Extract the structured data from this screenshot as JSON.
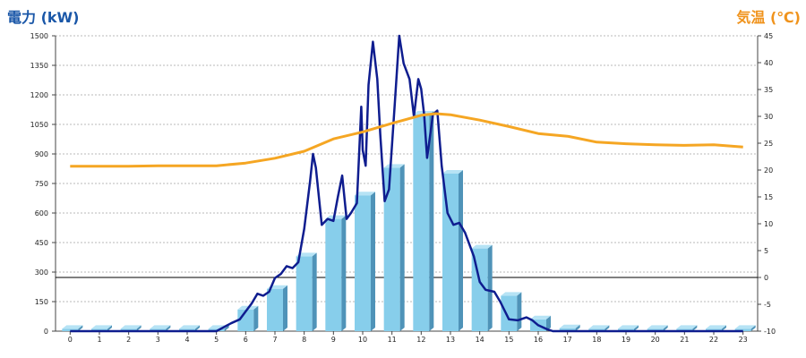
{
  "chart_data": {
    "type": "bar",
    "title_left": "電力 (kW)",
    "title_right": "気温 (℃)",
    "x": [
      0,
      1,
      2,
      3,
      4,
      5,
      6,
      7,
      8,
      9,
      10,
      11,
      12,
      13,
      14,
      15,
      16,
      17,
      18,
      19,
      20,
      21,
      22,
      23
    ],
    "x_tick_labels": [
      "0",
      "1",
      "2",
      "3",
      "4",
      "5",
      "6",
      "7",
      "8",
      "9",
      "10",
      "11",
      "12",
      "13",
      "14",
      "15",
      "16",
      "17",
      "18",
      "19",
      "20",
      "21",
      "22",
      "23"
    ],
    "y_left": {
      "range": [
        0,
        1500
      ],
      "ticks": [
        0,
        150,
        300,
        450,
        600,
        750,
        900,
        1050,
        1200,
        1350,
        1500
      ]
    },
    "y_right": {
      "range": [
        -10,
        45
      ],
      "ticks": [
        -10,
        -5,
        0,
        5,
        10,
        15,
        20,
        25,
        30,
        35,
        40,
        45
      ]
    },
    "grid": true,
    "series": [
      {
        "kind": "bar",
        "axis": "left",
        "values": [
          12,
          12,
          12,
          12,
          12,
          12,
          110,
          215,
          380,
          570,
          690,
          830,
          1100,
          800,
          420,
          180,
          60,
          15,
          12,
          12,
          12,
          12,
          12,
          12
        ],
        "color": "#87ceeb"
      },
      {
        "kind": "line",
        "axis": "left",
        "color": "#0f1d8f",
        "points": [
          [
            0,
            0
          ],
          [
            1,
            0
          ],
          [
            2,
            0
          ],
          [
            3,
            0
          ],
          [
            4,
            0
          ],
          [
            5,
            0
          ],
          [
            5.5,
            40
          ],
          [
            5.8,
            60
          ],
          [
            6,
            100
          ],
          [
            6.2,
            140
          ],
          [
            6.4,
            190
          ],
          [
            6.6,
            180
          ],
          [
            6.8,
            200
          ],
          [
            7,
            270
          ],
          [
            7.2,
            290
          ],
          [
            7.4,
            330
          ],
          [
            7.6,
            320
          ],
          [
            7.8,
            350
          ],
          [
            8,
            520
          ],
          [
            8.2,
            760
          ],
          [
            8.3,
            900
          ],
          [
            8.4,
            830
          ],
          [
            8.6,
            540
          ],
          [
            8.8,
            570
          ],
          [
            9,
            560
          ],
          [
            9.15,
            680
          ],
          [
            9.3,
            790
          ],
          [
            9.45,
            570
          ],
          [
            9.6,
            600
          ],
          [
            9.8,
            650
          ],
          [
            9.95,
            1140
          ],
          [
            10,
            920
          ],
          [
            10.1,
            840
          ],
          [
            10.2,
            1250
          ],
          [
            10.35,
            1470
          ],
          [
            10.5,
            1280
          ],
          [
            10.6,
            1000
          ],
          [
            10.75,
            660
          ],
          [
            10.9,
            720
          ],
          [
            11.1,
            1160
          ],
          [
            11.25,
            1500
          ],
          [
            11.4,
            1360
          ],
          [
            11.6,
            1280
          ],
          [
            11.75,
            1090
          ],
          [
            11.9,
            1280
          ],
          [
            12,
            1230
          ],
          [
            12.1,
            1100
          ],
          [
            12.2,
            880
          ],
          [
            12.4,
            1100
          ],
          [
            12.55,
            1120
          ],
          [
            12.7,
            840
          ],
          [
            12.9,
            600
          ],
          [
            13.1,
            540
          ],
          [
            13.3,
            550
          ],
          [
            13.5,
            500
          ],
          [
            13.8,
            380
          ],
          [
            14,
            250
          ],
          [
            14.2,
            210
          ],
          [
            14.5,
            200
          ],
          [
            14.7,
            150
          ],
          [
            15,
            60
          ],
          [
            15.3,
            55
          ],
          [
            15.6,
            70
          ],
          [
            15.8,
            55
          ],
          [
            16,
            30
          ],
          [
            16.3,
            10
          ],
          [
            16.5,
            0
          ],
          [
            17,
            0
          ],
          [
            18,
            0
          ],
          [
            19,
            0
          ],
          [
            20,
            0
          ],
          [
            21,
            0
          ],
          [
            22,
            0
          ],
          [
            23,
            0
          ]
        ]
      },
      {
        "kind": "line",
        "axis": "right",
        "color": "#f5a623",
        "points": [
          [
            0,
            20.7
          ],
          [
            1,
            20.7
          ],
          [
            2,
            20.7
          ],
          [
            3,
            20.8
          ],
          [
            4,
            20.8
          ],
          [
            5,
            20.8
          ],
          [
            6,
            21.3
          ],
          [
            7,
            22.2
          ],
          [
            8,
            23.5
          ],
          [
            9,
            25.8
          ],
          [
            10,
            27.1
          ],
          [
            11,
            28.7
          ],
          [
            12,
            30.2
          ],
          [
            12.5,
            30.5
          ],
          [
            13,
            30.3
          ],
          [
            14,
            29.3
          ],
          [
            15,
            28.1
          ],
          [
            16,
            26.8
          ],
          [
            17,
            26.3
          ],
          [
            18,
            25.2
          ],
          [
            19,
            24.9
          ],
          [
            20,
            24.7
          ],
          [
            21,
            24.6
          ],
          [
            22,
            24.7
          ],
          [
            23,
            24.3
          ]
        ]
      }
    ]
  }
}
